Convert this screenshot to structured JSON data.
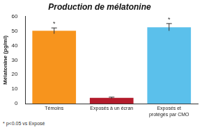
{
  "chart_data": {
    "type": "bar",
    "title": "Production de mélatonine",
    "y_label": "Mélatonine (pg/ml)",
    "categories": [
      "Témoins",
      "Exposés à un écran",
      [
        "Exposés et",
        "protégés par CMO"
      ]
    ],
    "values": [
      50,
      4,
      52.5
    ],
    "errors": [
      2,
      0.5,
      2.5
    ],
    "annotations": [
      "*",
      null,
      "*"
    ],
    "footnote": "* p<0.05 vs Exposé",
    "colors": [
      "#f7941d",
      "#b31b2b",
      "#5bc0eb"
    ],
    "ylim": [
      0,
      60
    ],
    "yticks": [
      0,
      10,
      20,
      30,
      40,
      50,
      60
    ],
    "grid": false
  }
}
